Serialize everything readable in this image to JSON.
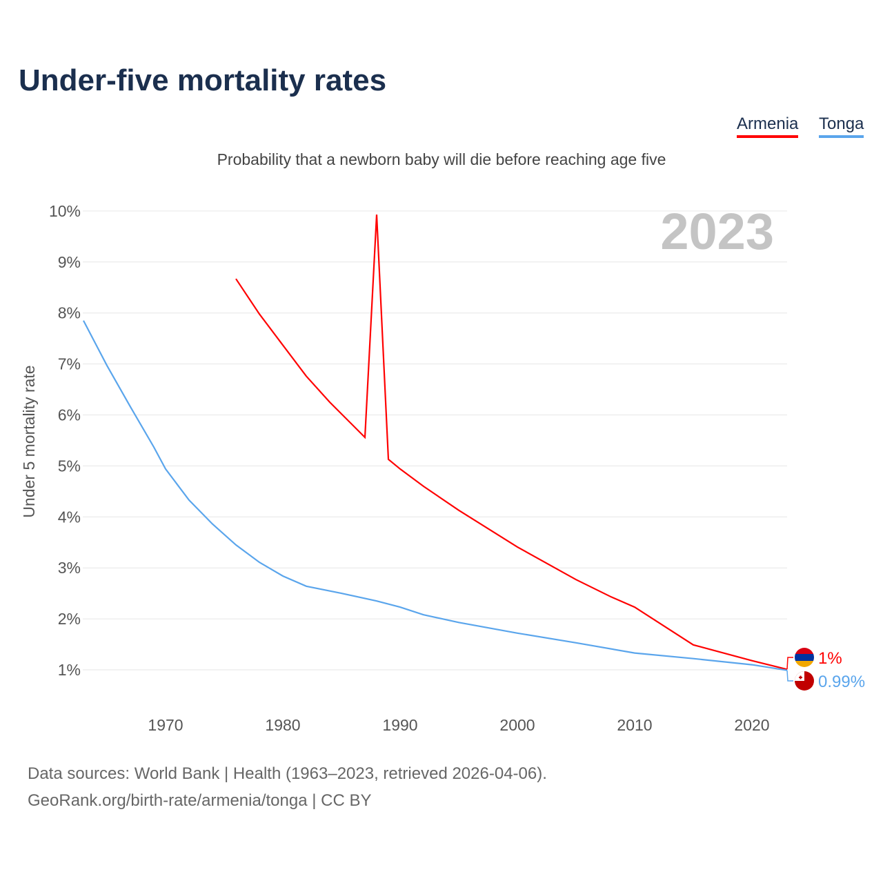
{
  "title": "Under-five mortality rates",
  "subtitle": "Probability that a newborn baby will die before reaching age five",
  "legend": [
    "Armenia",
    "Tonga"
  ],
  "year_label": "2023",
  "footer": {
    "line1": "Data sources: World Bank | Health (1963–2023, retrieved 2026-04-06).",
    "line2": "GeoRank.org/birth-rate/armenia/tonga | CC BY"
  },
  "chart_data": {
    "type": "line",
    "title": "Under-five mortality rates",
    "xlabel": "",
    "ylabel": "Under 5 mortality rate",
    "xlim": [
      1963,
      2023
    ],
    "ylim": [
      1,
      10
    ],
    "x_ticks": [
      1970,
      1980,
      1990,
      2000,
      2010,
      2020
    ],
    "y_ticks": [
      1,
      2,
      3,
      4,
      5,
      6,
      7,
      8,
      9,
      10
    ],
    "y_tick_labels": [
      "1%",
      "2%",
      "3%",
      "4%",
      "5%",
      "6%",
      "7%",
      "8%",
      "9%",
      "10%"
    ],
    "grid": true,
    "legend_position": "top-right",
    "series": [
      {
        "name": "Armenia",
        "color": "#ff0000",
        "end_label": "1%",
        "x": [
          1976,
          1978,
          1980,
          1982,
          1984,
          1987,
          1988,
          1989,
          1990,
          1992,
          1995,
          2000,
          2005,
          2008,
          2010,
          2015,
          2020,
          2023
        ],
        "y": [
          8.67,
          7.98,
          7.37,
          6.76,
          6.25,
          5.56,
          9.93,
          5.13,
          4.94,
          4.6,
          4.13,
          3.41,
          2.77,
          2.43,
          2.23,
          1.49,
          1.18,
          1.01
        ]
      },
      {
        "name": "Tonga",
        "color": "#5aa5ec",
        "end_label": "0.99%",
        "x": [
          1963,
          1965,
          1967,
          1969,
          1970,
          1972,
          1974,
          1976,
          1978,
          1980,
          1982,
          1985,
          1988,
          1990,
          1992,
          1995,
          2000,
          2005,
          2010,
          2015,
          2020,
          2023
        ],
        "y": [
          7.85,
          6.97,
          6.16,
          5.37,
          4.94,
          4.33,
          3.86,
          3.45,
          3.11,
          2.84,
          2.64,
          2.5,
          2.35,
          2.23,
          2.08,
          1.93,
          1.72,
          1.53,
          1.33,
          1.22,
          1.1,
          0.99
        ]
      }
    ]
  }
}
